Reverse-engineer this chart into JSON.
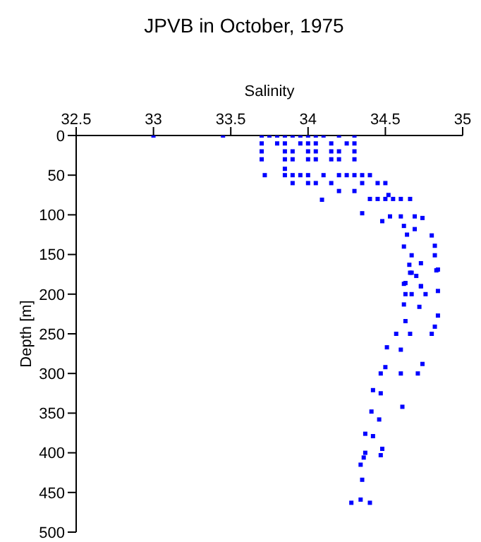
{
  "chart_data": {
    "type": "scatter",
    "title": "JPVB in October, 1975",
    "xlabel": "Salinity",
    "ylabel": "Depth [m]",
    "xlim": [
      32.5,
      35
    ],
    "xticks": [
      32.5,
      33,
      33.5,
      34,
      34.5,
      35
    ],
    "ylim": [
      500,
      0
    ],
    "yticks": [
      0,
      50,
      100,
      150,
      200,
      250,
      300,
      350,
      400,
      450,
      500
    ],
    "grid": false,
    "marker": "square",
    "legend": false,
    "series": [
      {
        "color": "#0000ff",
        "x": [
          33.0,
          33.45,
          33.7,
          33.75,
          33.8,
          33.85,
          33.9,
          33.95,
          34.0,
          34.05,
          34.1,
          34.2,
          34.3,
          33.7,
          33.8,
          33.85,
          33.95,
          34.0,
          34.05,
          34.15,
          34.25,
          34.3,
          33.7,
          33.85,
          33.9,
          34.0,
          34.05,
          34.15,
          34.2,
          34.3,
          33.7,
          33.85,
          33.9,
          34.0,
          34.05,
          34.15,
          34.2,
          34.3,
          33.85,
          33.72,
          33.85,
          33.9,
          33.95,
          34.0,
          34.1,
          34.2,
          34.25,
          34.3,
          34.35,
          34.4,
          33.9,
          34.0,
          34.05,
          34.15,
          34.35,
          34.45,
          34.5,
          34.2,
          34.3,
          34.52,
          34.09,
          34.4,
          34.45,
          34.5,
          34.55,
          34.6,
          34.66,
          34.35,
          34.48,
          34.53,
          34.6,
          34.69,
          34.74,
          34.62,
          34.69,
          34.8,
          34.64,
          34.62,
          34.82,
          34.67,
          34.82,
          34.73,
          34.66,
          34.83,
          34.62,
          34.73,
          34.655,
          34.84,
          34.67,
          34.7,
          34.63,
          34.73,
          34.84,
          34.63,
          34.67,
          34.76,
          34.62,
          34.72,
          34.84,
          34.63,
          34.82,
          34.57,
          34.66,
          34.8,
          34.51,
          34.6,
          34.74,
          34.5,
          34.47,
          34.6,
          34.71,
          34.42,
          34.47,
          34.61,
          34.41,
          34.46,
          34.37,
          34.42,
          34.48,
          34.37,
          34.47,
          34.36,
          34.34,
          34.35,
          34.34,
          34.28,
          34.4
        ],
        "values": [
          0,
          0,
          0,
          0,
          0,
          0,
          0,
          0,
          0,
          0,
          0,
          0,
          0,
          10,
          10,
          10,
          10,
          10,
          10,
          10,
          10,
          10,
          20,
          20,
          20,
          20,
          20,
          20,
          20,
          20,
          30,
          30,
          30,
          30,
          30,
          30,
          30,
          30,
          42,
          50,
          50,
          50,
          50,
          50,
          50,
          50,
          50,
          50,
          50,
          50,
          60,
          60,
          60,
          60,
          60,
          60,
          60,
          70,
          70,
          75,
          81,
          80,
          80,
          80,
          80,
          80,
          80,
          98,
          108,
          102,
          102,
          102,
          104,
          114,
          118,
          126,
          125,
          140,
          139,
          151,
          151,
          161,
          173,
          170,
          187,
          190,
          163,
          169,
          173,
          177,
          186,
          190,
          196,
          200,
          200,
          200,
          213,
          216,
          227,
          234,
          241,
          250,
          250,
          250,
          267,
          270,
          288,
          292,
          300,
          300,
          300,
          321,
          325,
          342,
          348,
          358,
          376,
          379,
          395,
          400,
          403,
          406,
          415,
          434,
          459,
          463,
          463
        ]
      }
    ]
  }
}
